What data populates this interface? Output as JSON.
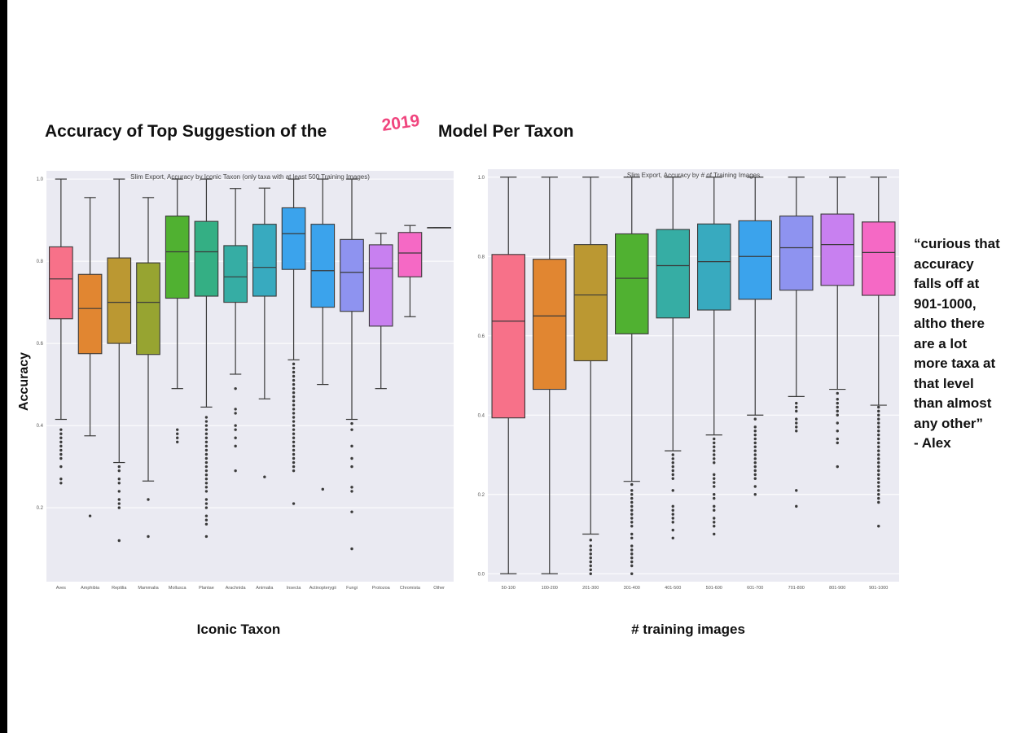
{
  "slide": {
    "title_prefix": "Accuracy of Top Suggestion of the",
    "title_year": "2019",
    "title_suffix": "Model Per Taxon",
    "y_axis_title": "Accuracy",
    "left_x_axis_title": "Iconic Taxon",
    "right_x_axis_title": "# training images",
    "quote_lines": [
      "“curious that",
      "accuracy",
      "falls off at",
      "901-1000,",
      "altho there",
      "are a lot",
      "more taxa at",
      "that level",
      "than almost",
      "any other”",
      "- Alex"
    ]
  },
  "colors": {
    "plot_background": "#eaeaf2",
    "year_accent": "#f0457e"
  },
  "chart_data": [
    {
      "type": "box",
      "title": "Slim Export, Accuracy by Iconic Taxon (only taxa with at least 500 Training Images)",
      "ylim": [
        0.02,
        1.02
      ],
      "y_ticks": [
        0.2,
        0.4,
        0.6,
        0.8,
        1.0
      ],
      "y_tick_labels": [
        "0.2",
        "0.4",
        "0.6",
        "0.8",
        "1.0"
      ],
      "grid": true,
      "categories": [
        "Aves",
        "Amphibia",
        "Reptilia",
        "Mammalia",
        "Mollusca",
        "Plantae",
        "Arachnida",
        "Animalia",
        "Insecta",
        "Actinopterygii",
        "Fungi",
        "Protozoa",
        "Chromista",
        "Other"
      ],
      "colors": [
        "#f77189",
        "#e18631",
        "#bb9832",
        "#97a431",
        "#50b131",
        "#34af84",
        "#36ada4",
        "#38aabf",
        "#3ba3ec",
        "#3ba3ec",
        "#8e93f0",
        "#c880f0",
        "#f569c5",
        "#f77189"
      ],
      "boxes": [
        {
          "whislo": 0.415,
          "q1": 0.66,
          "med": 0.757,
          "q3": 0.835,
          "whishi": 1.0,
          "fliers": [
            0.39,
            0.38,
            0.37,
            0.36,
            0.35,
            0.34,
            0.33,
            0.32,
            0.3,
            0.27,
            0.26
          ]
        },
        {
          "whislo": 0.375,
          "q1": 0.575,
          "med": 0.685,
          "q3": 0.768,
          "whishi": 0.955,
          "fliers": [
            0.18
          ]
        },
        {
          "whislo": 0.31,
          "q1": 0.6,
          "med": 0.7,
          "q3": 0.808,
          "whishi": 1.0,
          "fliers": [
            0.3,
            0.29,
            0.27,
            0.26,
            0.24,
            0.22,
            0.21,
            0.2,
            0.12
          ]
        },
        {
          "whislo": 0.265,
          "q1": 0.573,
          "med": 0.7,
          "q3": 0.796,
          "whishi": 0.955,
          "fliers": [
            0.22,
            0.13
          ]
        },
        {
          "whislo": 0.49,
          "q1": 0.71,
          "med": 0.823,
          "q3": 0.91,
          "whishi": 1.0,
          "fliers": [
            0.39,
            0.38,
            0.37,
            0.36
          ]
        },
        {
          "whislo": 0.445,
          "q1": 0.715,
          "med": 0.823,
          "q3": 0.897,
          "whishi": 1.0,
          "fliers": [
            0.42,
            0.41,
            0.4,
            0.39,
            0.38,
            0.37,
            0.36,
            0.35,
            0.34,
            0.33,
            0.32,
            0.31,
            0.3,
            0.29,
            0.28,
            0.27,
            0.26,
            0.25,
            0.24,
            0.22,
            0.21,
            0.2,
            0.18,
            0.17,
            0.16,
            0.13
          ]
        },
        {
          "whislo": 0.525,
          "q1": 0.7,
          "med": 0.762,
          "q3": 0.838,
          "whishi": 0.977,
          "fliers": [
            0.49,
            0.44,
            0.43,
            0.4,
            0.39,
            0.37,
            0.35,
            0.29
          ]
        },
        {
          "whislo": 0.465,
          "q1": 0.715,
          "med": 0.785,
          "q3": 0.89,
          "whishi": 0.978,
          "fliers": [
            0.275
          ]
        },
        {
          "whislo": 0.56,
          "q1": 0.78,
          "med": 0.867,
          "q3": 0.93,
          "whishi": 1.0,
          "fliers": [
            0.55,
            0.54,
            0.53,
            0.52,
            0.51,
            0.5,
            0.49,
            0.48,
            0.47,
            0.46,
            0.45,
            0.44,
            0.43,
            0.42,
            0.41,
            0.4,
            0.39,
            0.38,
            0.37,
            0.36,
            0.35,
            0.34,
            0.33,
            0.32,
            0.31,
            0.3,
            0.29,
            0.21
          ]
        },
        {
          "whislo": 0.5,
          "q1": 0.688,
          "med": 0.777,
          "q3": 0.89,
          "whishi": 1.0,
          "fliers": [
            0.245
          ]
        },
        {
          "whislo": 0.415,
          "q1": 0.678,
          "med": 0.773,
          "q3": 0.853,
          "whishi": 1.0,
          "fliers": [
            0.405,
            0.39,
            0.35,
            0.32,
            0.3,
            0.25,
            0.24,
            0.19,
            0.1
          ]
        },
        {
          "whislo": 0.49,
          "q1": 0.642,
          "med": 0.783,
          "q3": 0.84,
          "whishi": 0.868,
          "fliers": []
        },
        {
          "whislo": 0.665,
          "q1": 0.762,
          "med": 0.82,
          "q3": 0.87,
          "whishi": 0.887,
          "fliers": []
        },
        {
          "whislo": 0.882,
          "q1": 0.882,
          "med": 0.882,
          "q3": 0.882,
          "whishi": 0.882,
          "fliers": []
        }
      ]
    },
    {
      "type": "box",
      "title": "Slim Export, Accuracy by # of Training Images",
      "ylim": [
        -0.02,
        1.02
      ],
      "y_ticks": [
        0.0,
        0.2,
        0.4,
        0.6,
        0.8,
        1.0
      ],
      "y_tick_labels": [
        "0.0",
        "0.2",
        "0.4",
        "0.6",
        "0.8",
        "1.0"
      ],
      "grid": true,
      "categories": [
        "50-100",
        "100-200",
        "201-300",
        "301-400",
        "401-500",
        "501-600",
        "601-700",
        "701-800",
        "801-900",
        "901-1000"
      ],
      "colors": [
        "#f77189",
        "#e18631",
        "#bb9832",
        "#50b131",
        "#36ada4",
        "#38aabf",
        "#3ba3ec",
        "#8e93f0",
        "#c880f0",
        "#f569c5"
      ],
      "boxes": [
        {
          "whislo": 0.0,
          "q1": 0.393,
          "med": 0.637,
          "q3": 0.805,
          "whishi": 1.0,
          "fliers": []
        },
        {
          "whislo": 0.0,
          "q1": 0.465,
          "med": 0.65,
          "q3": 0.793,
          "whishi": 1.0,
          "fliers": []
        },
        {
          "whislo": 0.1,
          "q1": 0.537,
          "med": 0.703,
          "q3": 0.83,
          "whishi": 1.0,
          "fliers": [
            0.085,
            0.07,
            0.06,
            0.05,
            0.04,
            0.03,
            0.02,
            0.01,
            0.0
          ]
        },
        {
          "whislo": 0.233,
          "q1": 0.605,
          "med": 0.745,
          "q3": 0.857,
          "whishi": 1.0,
          "fliers": [
            0.225,
            0.21,
            0.2,
            0.19,
            0.18,
            0.17,
            0.16,
            0.15,
            0.14,
            0.13,
            0.12,
            0.1,
            0.09,
            0.07,
            0.06,
            0.05,
            0.04,
            0.03,
            0.02,
            0.0
          ]
        },
        {
          "whislo": 0.31,
          "q1": 0.645,
          "med": 0.777,
          "q3": 0.868,
          "whishi": 1.0,
          "fliers": [
            0.3,
            0.29,
            0.28,
            0.27,
            0.26,
            0.25,
            0.24,
            0.21,
            0.17,
            0.16,
            0.15,
            0.14,
            0.13,
            0.11,
            0.09
          ]
        },
        {
          "whislo": 0.35,
          "q1": 0.665,
          "med": 0.787,
          "q3": 0.882,
          "whishi": 1.0,
          "fliers": [
            0.34,
            0.33,
            0.32,
            0.31,
            0.3,
            0.29,
            0.28,
            0.25,
            0.24,
            0.23,
            0.22,
            0.2,
            0.19,
            0.17,
            0.16,
            0.14,
            0.13,
            0.12,
            0.1
          ]
        },
        {
          "whislo": 0.4,
          "q1": 0.692,
          "med": 0.8,
          "q3": 0.89,
          "whishi": 1.0,
          "fliers": [
            0.39,
            0.37,
            0.36,
            0.35,
            0.34,
            0.33,
            0.32,
            0.31,
            0.3,
            0.29,
            0.28,
            0.27,
            0.26,
            0.25,
            0.24,
            0.22,
            0.2
          ]
        },
        {
          "whislo": 0.447,
          "q1": 0.715,
          "med": 0.822,
          "q3": 0.902,
          "whishi": 1.0,
          "fliers": [
            0.43,
            0.42,
            0.41,
            0.39,
            0.38,
            0.37,
            0.36,
            0.21,
            0.17
          ]
        },
        {
          "whislo": 0.465,
          "q1": 0.727,
          "med": 0.83,
          "q3": 0.907,
          "whishi": 1.0,
          "fliers": [
            0.455,
            0.44,
            0.43,
            0.42,
            0.41,
            0.4,
            0.38,
            0.36,
            0.34,
            0.33,
            0.27
          ]
        },
        {
          "whislo": 0.425,
          "q1": 0.702,
          "med": 0.81,
          "q3": 0.887,
          "whishi": 1.0,
          "fliers": [
            0.42,
            0.41,
            0.4,
            0.39,
            0.38,
            0.37,
            0.36,
            0.35,
            0.34,
            0.33,
            0.32,
            0.31,
            0.3,
            0.29,
            0.28,
            0.27,
            0.26,
            0.25,
            0.24,
            0.23,
            0.22,
            0.21,
            0.2,
            0.19,
            0.18,
            0.12
          ]
        }
      ]
    }
  ]
}
